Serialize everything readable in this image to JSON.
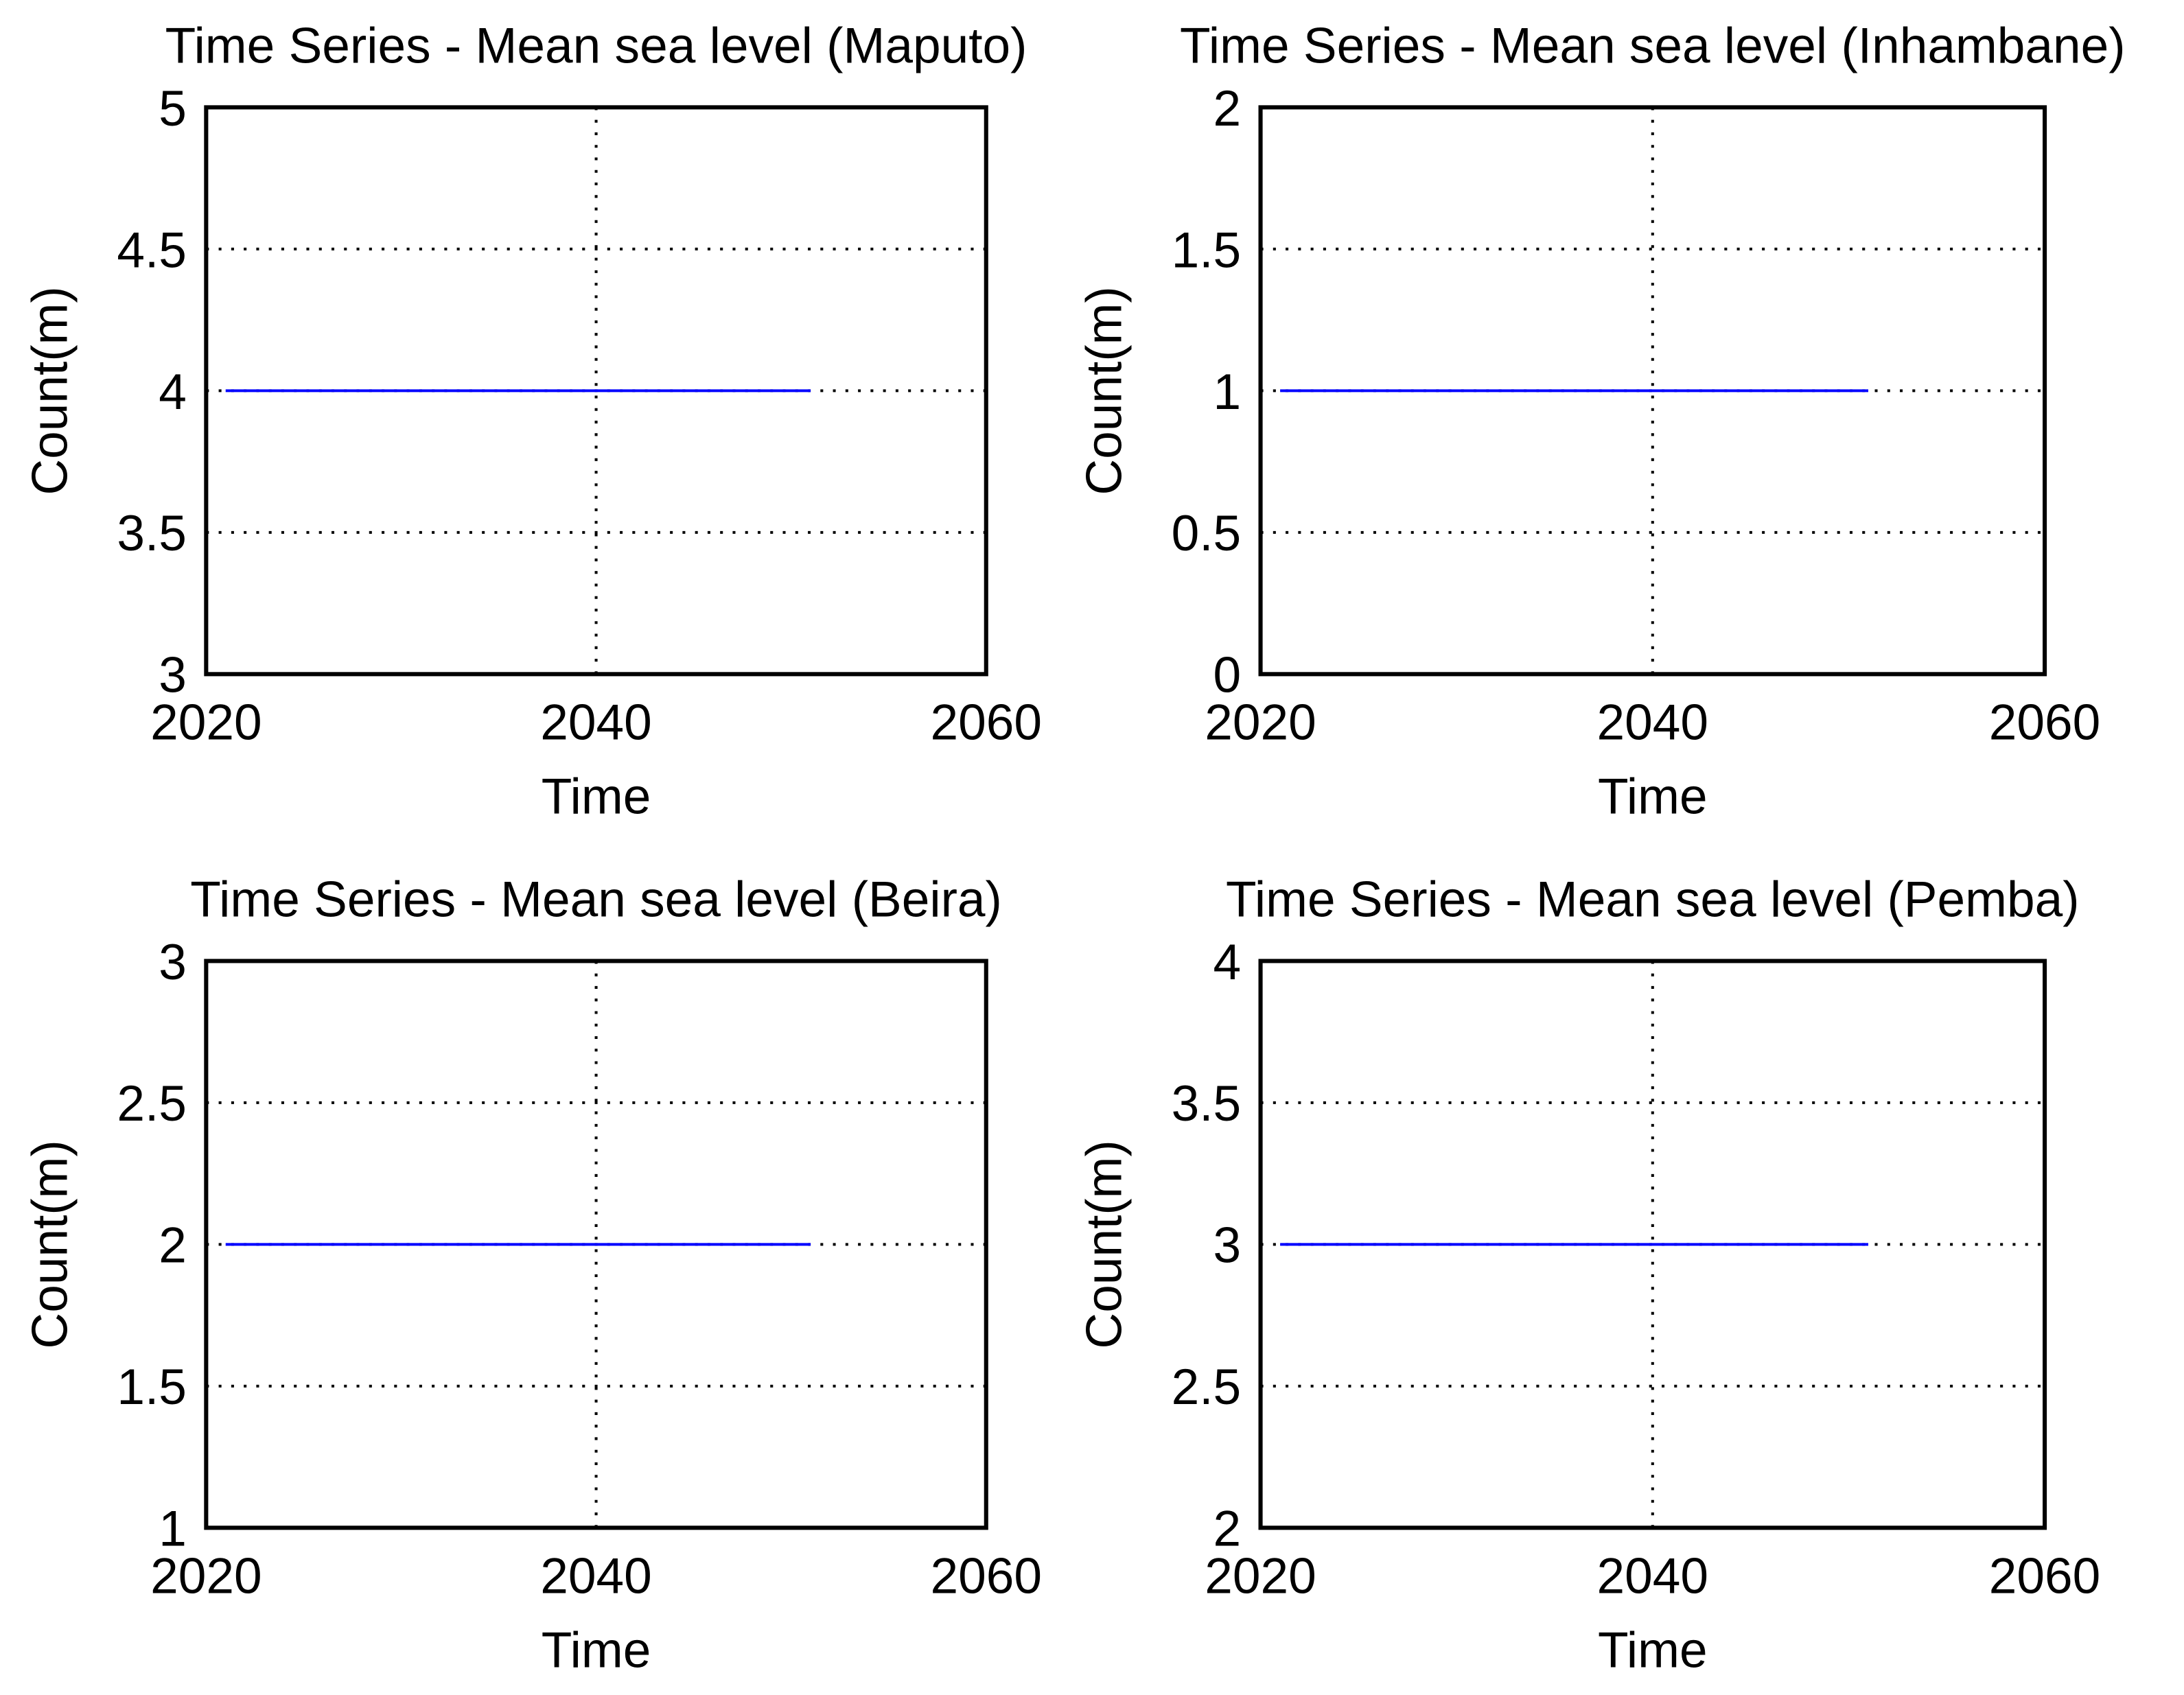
{
  "chart_data": [
    {
      "type": "line",
      "title": "Time Series - Mean sea level (Maputo)",
      "x_label": "Time",
      "y_label": "Count(m)",
      "x": [
        2021,
        2051
      ],
      "series": [
        {
          "color": "#0000ff",
          "values": [
            4,
            4
          ]
        }
      ],
      "xlim": [
        2020,
        2060
      ],
      "xticks": [
        2020,
        2040,
        2060
      ],
      "ylim": [
        3,
        5
      ],
      "yticks": [
        3,
        3.5,
        4,
        4.5,
        5
      ],
      "grid": true
    },
    {
      "type": "line",
      "title": "Time Series - Mean sea level (Inhambane)",
      "x_label": "Time",
      "y_label": "Count(m)",
      "x": [
        2021,
        2051
      ],
      "series": [
        {
          "color": "#0000ff",
          "values": [
            1,
            1
          ]
        }
      ],
      "xlim": [
        2020,
        2060
      ],
      "xticks": [
        2020,
        2040,
        2060
      ],
      "ylim": [
        0,
        2
      ],
      "yticks": [
        0,
        0.5,
        1,
        1.5,
        2
      ],
      "grid": true
    },
    {
      "type": "line",
      "title": "Time Series - Mean sea level (Beira)",
      "x_label": "Time",
      "y_label": "Count(m)",
      "x": [
        2021,
        2051
      ],
      "series": [
        {
          "color": "#0000ff",
          "values": [
            2,
            2
          ]
        }
      ],
      "xlim": [
        2020,
        2060
      ],
      "xticks": [
        2020,
        2040,
        2060
      ],
      "ylim": [
        1,
        3
      ],
      "yticks": [
        1,
        1.5,
        2,
        2.5,
        3
      ],
      "grid": true
    },
    {
      "type": "line",
      "title": "Time Series - Mean sea level (Pemba)",
      "x_label": "Time",
      "y_label": "Count(m)",
      "x": [
        2021,
        2051
      ],
      "series": [
        {
          "color": "#0000ff",
          "values": [
            3,
            3
          ]
        }
      ],
      "xlim": [
        2020,
        2060
      ],
      "xticks": [
        2020,
        2040,
        2060
      ],
      "ylim": [
        2,
        4
      ],
      "yticks": [
        2,
        2.5,
        3,
        3.5,
        4
      ],
      "grid": true
    }
  ]
}
